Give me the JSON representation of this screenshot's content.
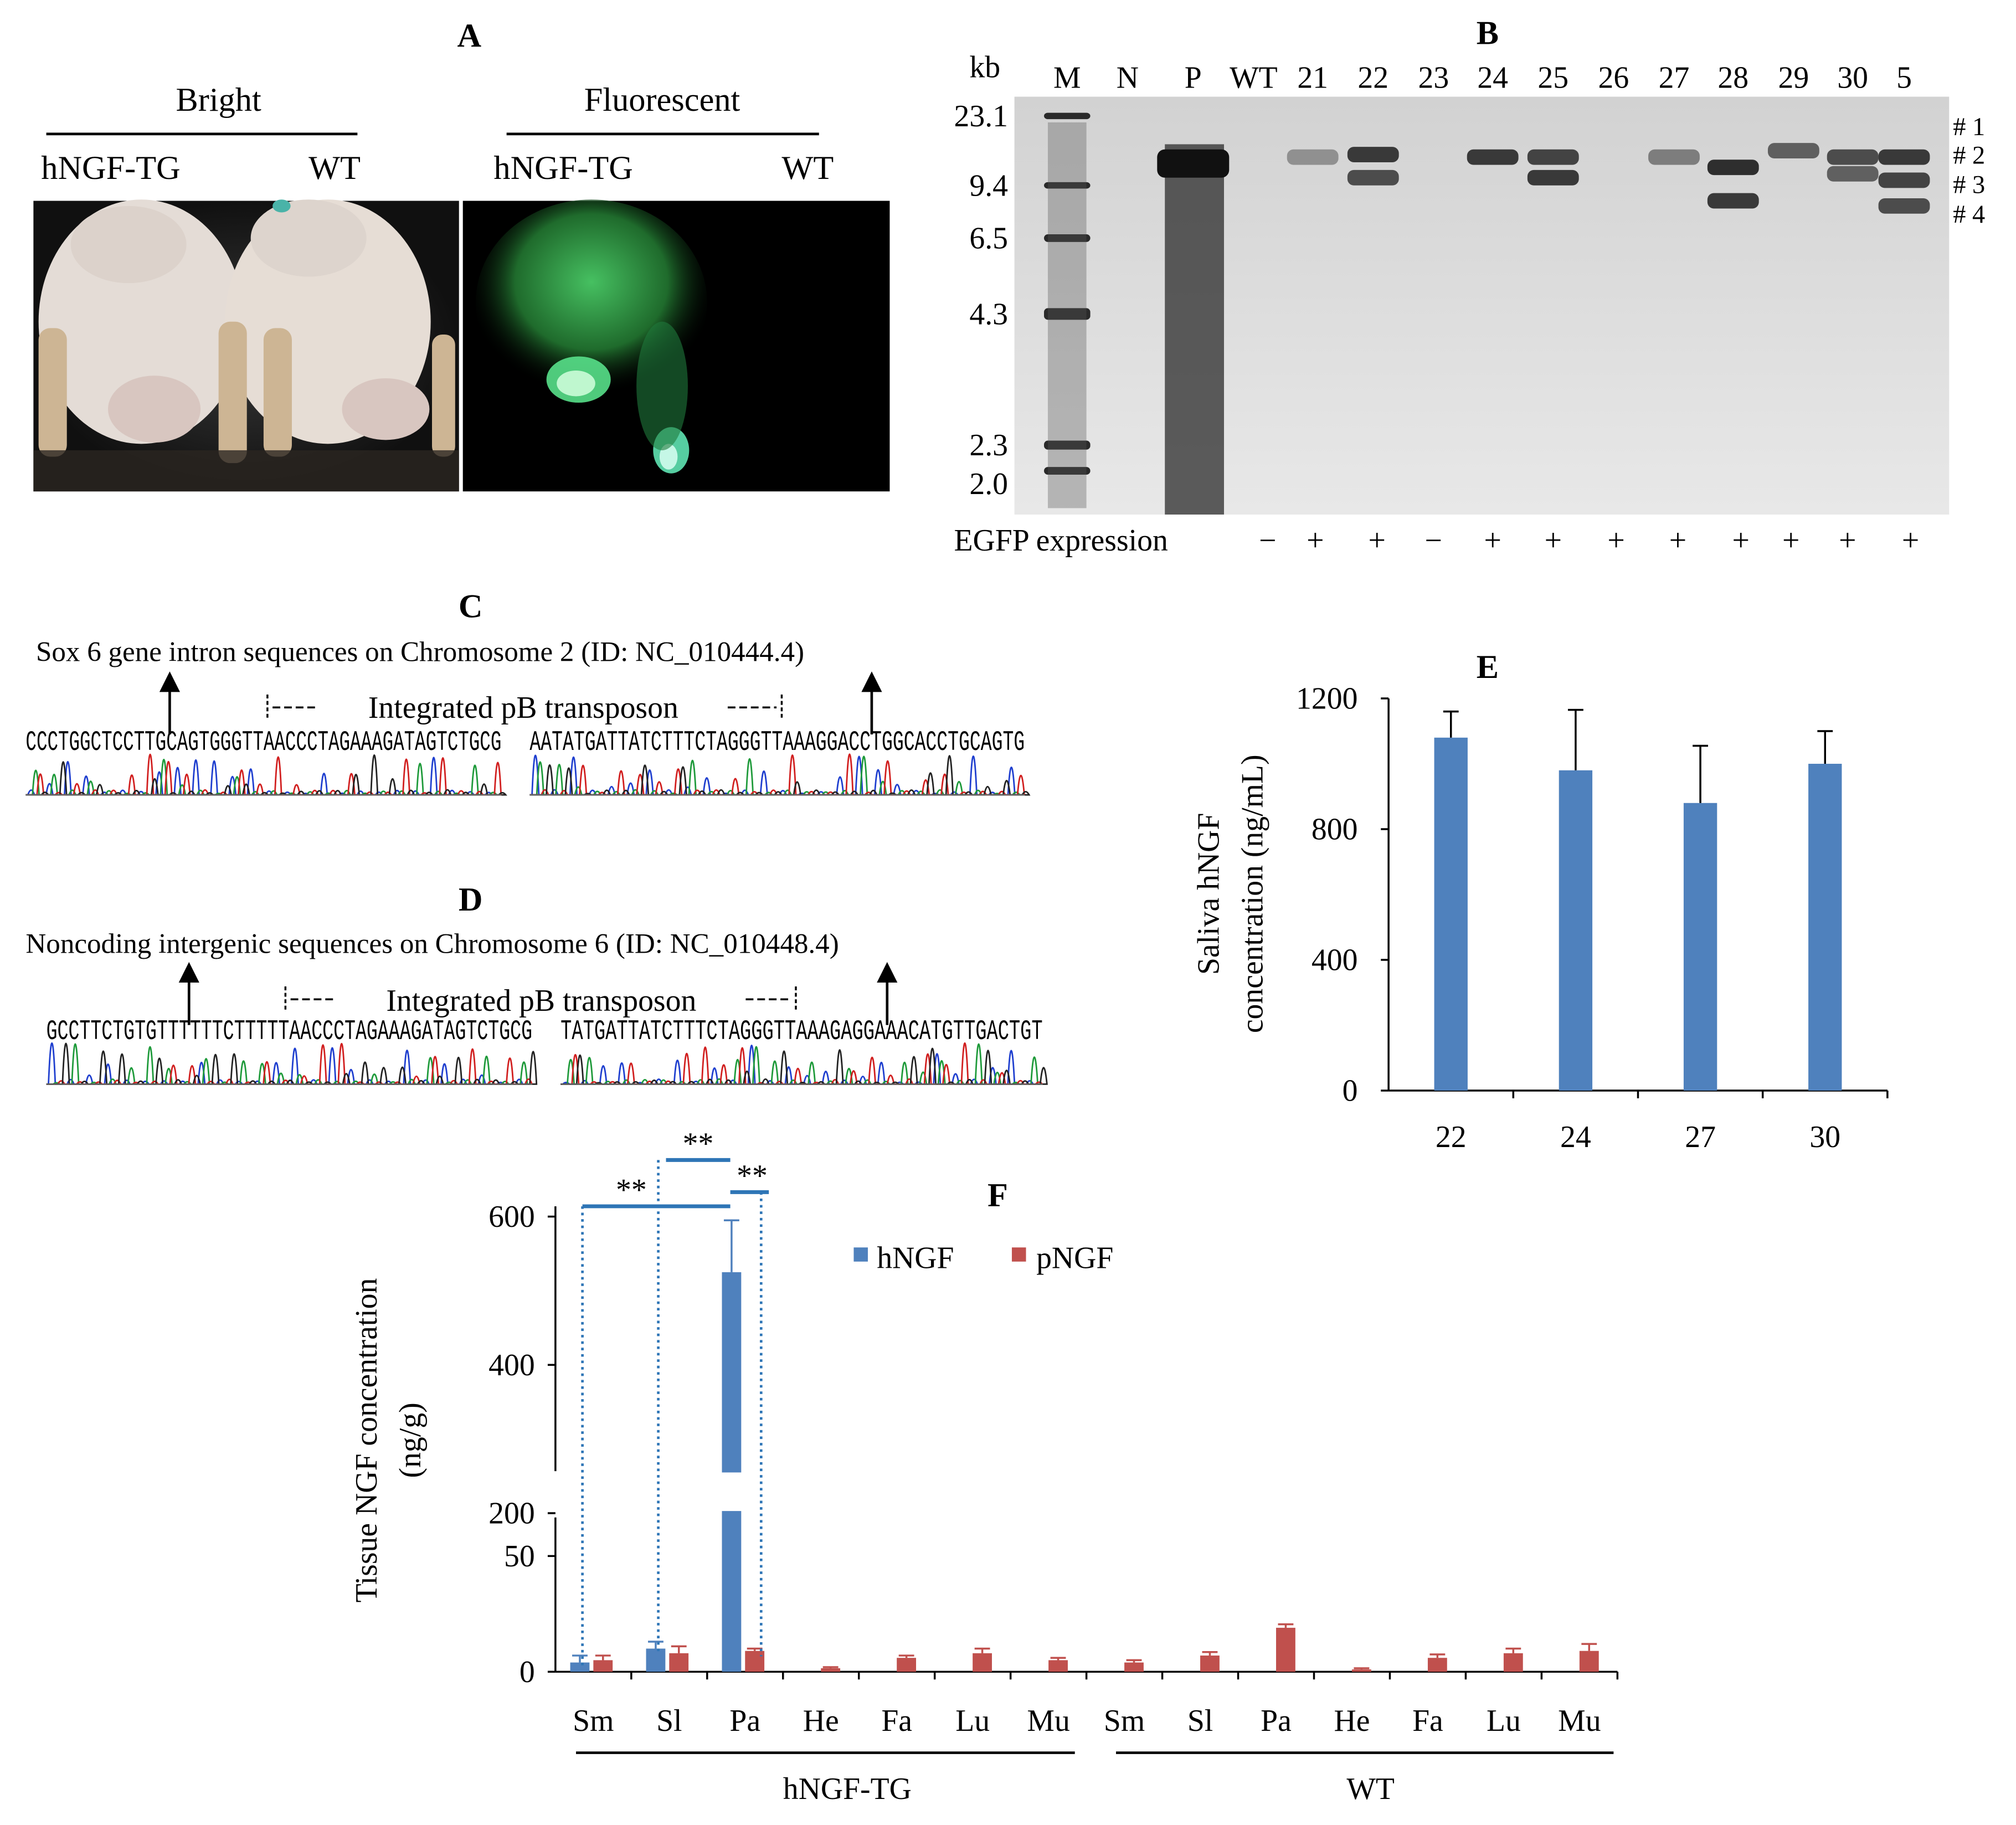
{
  "panel_a": {
    "letter": "A",
    "bright_label": "Bright",
    "fluor_label": "Fluorescent",
    "tg_label": "hNGF-TG",
    "wt_label": "WT"
  },
  "panel_b": {
    "letter": "B",
    "kb_label": "kb",
    "lanes": [
      "M",
      "N",
      "P",
      "WT",
      "21",
      "22",
      "23",
      "24",
      "25",
      "26",
      "27",
      "28",
      "29",
      "30",
      "5"
    ],
    "size_markers": [
      "23.1",
      "9.4",
      "6.5",
      "4.3",
      "2.3",
      "2.0"
    ],
    "band_labels": [
      "# 1",
      "# 2",
      "# 3",
      "# 4"
    ],
    "egfp_label": "EGFP expression",
    "egfp_signs": [
      "−",
      "+",
      "+",
      "−",
      "+",
      "+",
      "+",
      "+",
      "+",
      "+",
      "+",
      "+"
    ]
  },
  "panel_c": {
    "letter": "C",
    "caption": "Sox 6 gene intron sequences on Chromosome 2 (ID: NC_010444.4)",
    "pb_label": "Integrated pB transposon",
    "seq_left": "CCCTGGCTCCTTGCAGTGGGTTAACCCTAGAAAGATAGTCTGCG",
    "seq_right": "AATATGATTATCTTTCTAGGGTTAAAGGACCTGGCACCTGCAGTG"
  },
  "panel_d": {
    "letter": "D",
    "caption": "Noncoding intergenic sequences on Chromosome 6 (ID: NC_010448.4)",
    "pb_label": "Integrated pB transposon",
    "seq_left": "GCCTTCTGTGTTTTTTCTTTTTAACCCTAGAAAGATAGTCTGCG",
    "seq_right": "TATGATTATCTTTCTAGGGTTAAAGAGGAAACATGTTGACTGT"
  },
  "chart_data": [
    {
      "panel": "E",
      "type": "bar",
      "categories": [
        "22",
        "24",
        "27",
        "30"
      ],
      "values": [
        1080,
        980,
        880,
        1000
      ],
      "errors": [
        80,
        185,
        175,
        100
      ],
      "ylabel_line1": "Saliva hNGF",
      "ylabel_line2": "concentration (ng/mL)",
      "yticks": [
        "0",
        "400",
        "800",
        "1200"
      ],
      "ylim": [
        0,
        1200
      ],
      "color": "#4F81BD"
    },
    {
      "panel": "F",
      "type": "bar",
      "categories": [
        "Sm",
        "Sl",
        "Pa",
        "He",
        "Fa",
        "Lu",
        "Mu",
        "Sm",
        "Sl",
        "Pa",
        "He",
        "Fa",
        "Lu",
        "Mu"
      ],
      "groups": [
        "hNGF-TG",
        "WT"
      ],
      "series": [
        {
          "name": "hNGF",
          "color": "#4F81BD",
          "values": [
            4,
            10,
            525,
            0,
            0,
            0,
            0,
            0,
            0,
            0,
            0,
            0,
            0,
            0
          ],
          "errors": [
            3,
            3,
            70,
            0,
            0,
            0,
            0,
            0,
            0,
            0,
            0,
            0,
            0,
            0
          ]
        },
        {
          "name": "pNGF",
          "color": "#C0504D",
          "values": [
            5,
            8,
            9,
            1.5,
            6,
            8,
            5,
            4,
            7,
            19,
            1,
            6,
            8,
            9
          ],
          "errors": [
            2,
            3,
            1,
            0.5,
            1,
            2,
            1,
            1,
            1.5,
            1.5,
            0.5,
            1.5,
            2,
            3
          ]
        }
      ],
      "ylabel_line1": "Tissue NGF concentration",
      "ylabel_line2": "(ng/g)",
      "yticks": [
        "0",
        "50",
        "200",
        "400",
        "600"
      ],
      "break_axis": true,
      "significance": [
        "**",
        "**",
        "**"
      ]
    }
  ],
  "panel_e_letter": "E",
  "panel_f_letter": "F"
}
